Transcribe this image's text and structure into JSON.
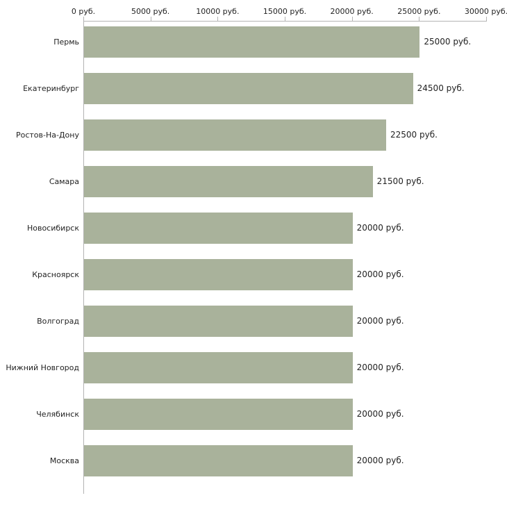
{
  "chart_data": {
    "type": "bar",
    "orientation": "horizontal",
    "title": "",
    "xlabel": "",
    "ylabel": "",
    "grid": "off",
    "legend": "none",
    "axis_position": "top",
    "xlim": [
      0,
      30000
    ],
    "x_ticks": [
      0,
      5000,
      10000,
      15000,
      20000,
      25000,
      30000
    ],
    "x_tick_labels": [
      "0 руб.",
      "5000 руб.",
      "10000 руб.",
      "15000 руб.",
      "20000 руб.",
      "25000 руб.",
      "30000 руб."
    ],
    "categories": [
      "Пермь",
      "Екатеринбург",
      "Ростов-На-Дону",
      "Самара",
      "Новосибирск",
      "Красноярск",
      "Волгоград",
      "Нижний Новгород",
      "Челябинск",
      "Москва"
    ],
    "values": [
      25000,
      24500,
      22500,
      21500,
      20000,
      20000,
      20000,
      20000,
      20000,
      20000
    ],
    "value_labels": [
      "25000 руб.",
      "24500 руб.",
      "22500 руб.",
      "21500 руб.",
      "20000 руб.",
      "20000 руб.",
      "20000 руб.",
      "20000 руб.",
      "20000 руб.",
      "20000 руб."
    ],
    "bar_color": "#a9b29b",
    "axis_color": "#b3b3b3",
    "text_color": "#222222",
    "background_color": "#ffffff"
  }
}
